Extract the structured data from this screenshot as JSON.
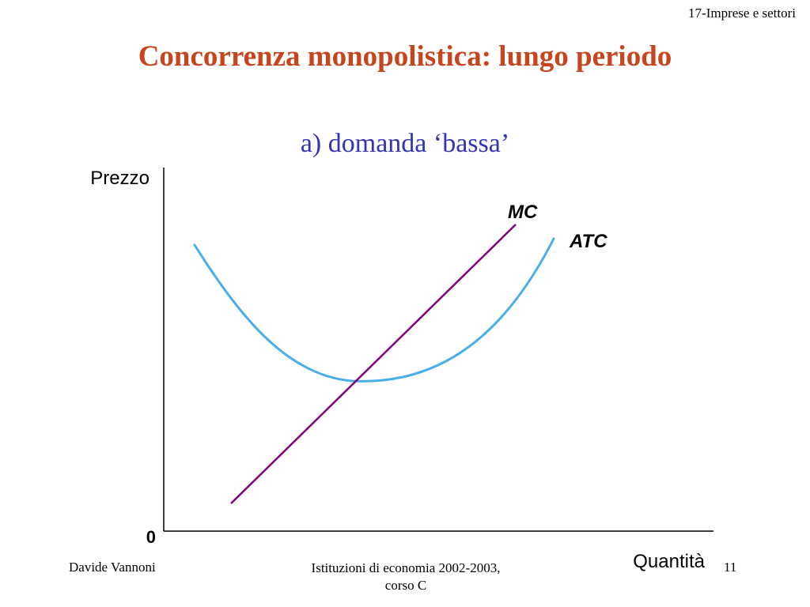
{
  "header": {
    "tag": "17-Imprese e settori"
  },
  "title": "Concorrenza monopolistica: lungo periodo",
  "subtitle": "a) domanda ‘bassa’",
  "colors": {
    "title": "#c8441c",
    "subtitle": "#3333b8",
    "mc_line": "#800080",
    "atc_curve": "#4aaeea",
    "axes": "#000000"
  },
  "diagram": {
    "y_axis_label": "Prezzo",
    "x_axis_label": "Quantità",
    "origin_label": "0",
    "mc_label": "MC",
    "atc_label": "ATC"
  },
  "footer": {
    "author": "Davide Vannoni",
    "course_line1": "Istituzioni di economia 2002-2003,",
    "course_line2": "corso C",
    "page_number": "11"
  }
}
